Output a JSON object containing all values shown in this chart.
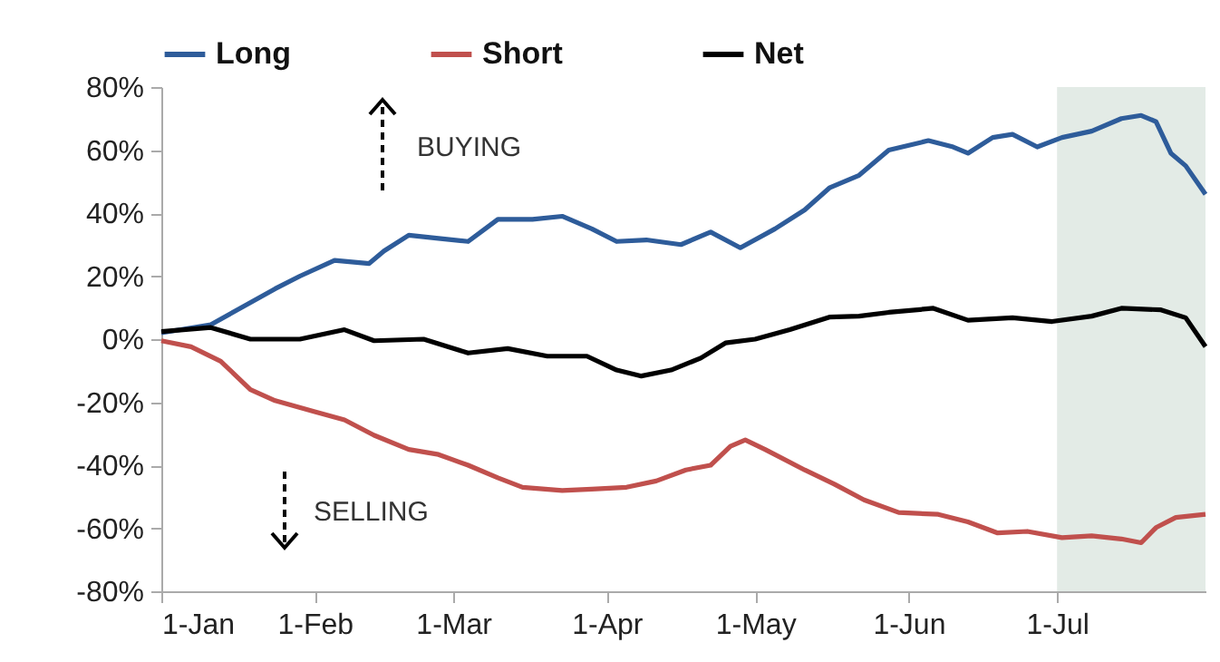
{
  "chart_data": {
    "type": "line",
    "legend": "top",
    "grid": false,
    "annotations": [
      "BUYING",
      "SELLING"
    ],
    "xlim": [
      "--01-01",
      "--07-31"
    ],
    "xticks": [
      {
        "value": "--01-01",
        "label": "1-Jan"
      },
      {
        "value": "--02-01",
        "label": "1-Feb"
      },
      {
        "value": "--03-01",
        "label": "1-Mar"
      },
      {
        "value": "--04-01",
        "label": "1-Apr"
      },
      {
        "value": "--05-01",
        "label": "1-May"
      },
      {
        "value": "--06-01",
        "label": "1-Jun"
      },
      {
        "value": "--07-01",
        "label": "1-Jul"
      }
    ],
    "ylim": [
      -80,
      80
    ],
    "yticks": [
      {
        "value": -80,
        "label": "-80%"
      },
      {
        "value": -60,
        "label": "-60%"
      },
      {
        "value": -40,
        "label": "-40%"
      },
      {
        "value": -20,
        "label": "-20%"
      },
      {
        "value": 0,
        "label": "0%"
      },
      {
        "value": 20,
        "label": "20%"
      },
      {
        "value": 40,
        "label": "40%"
      },
      {
        "value": 60,
        "label": "60%"
      },
      {
        "value": 80,
        "label": "80%"
      }
    ],
    "bands": [
      {
        "axis": "x",
        "from": "--07-01",
        "to": "--07-31",
        "color": "#e3ebe6"
      }
    ],
    "series": [
      {
        "name": "Long",
        "color": "#2e5c9a",
        "x": [
          "--01-01",
          "--01-11",
          "--01-16",
          "--01-24",
          "--01-29",
          "--02-05",
          "--02-12",
          "--02-15",
          "--02-20",
          "--02-26",
          "--03-04",
          "--03-10",
          "--03-17",
          "--03-23",
          "--03-29",
          "--04-03",
          "--04-09",
          "--04-16",
          "--04-22",
          "--04-28",
          "--05-05",
          "--05-11",
          "--05-16",
          "--05-22",
          "--05-28",
          "--06-05",
          "--06-10",
          "--06-13",
          "--06-18",
          "--06-22",
          "--06-27",
          "--07-02",
          "--07-08",
          "--07-14",
          "--07-18",
          "--07-21",
          "--07-24",
          "--07-27",
          "--07-31"
        ],
        "values": [
          2,
          4.6,
          9,
          16,
          20,
          25,
          24,
          28,
          33,
          32,
          31,
          38,
          38,
          39,
          35,
          31,
          31.5,
          30,
          34,
          29,
          35,
          41,
          48,
          52,
          60,
          63,
          61,
          59,
          64,
          65,
          61,
          64,
          66,
          70,
          71,
          69,
          59,
          55,
          46
        ]
      },
      {
        "name": "Short",
        "color": "#c0504d",
        "x": [
          "--01-01",
          "--01-07",
          "--01-13",
          "--01-19",
          "--01-24",
          "--02-01",
          "--02-07",
          "--02-13",
          "--02-20",
          "--02-26",
          "--03-04",
          "--03-10",
          "--03-15",
          "--03-23",
          "--03-29",
          "--04-05",
          "--04-11",
          "--04-17",
          "--04-22",
          "--04-26",
          "--04-29",
          "--05-03",
          "--05-11",
          "--05-17",
          "--05-23",
          "--05-30",
          "--06-07",
          "--06-13",
          "--06-19",
          "--06-25",
          "--07-02",
          "--07-08",
          "--07-14",
          "--07-18",
          "--07-21",
          "--07-25",
          "--07-31"
        ],
        "values": [
          -0.5,
          -2.4,
          -7,
          -16,
          -19.5,
          -23,
          -25.6,
          -30.5,
          -35,
          -36.6,
          -40,
          -44,
          -47,
          -48,
          -47.6,
          -47,
          -45,
          -41.5,
          -40,
          -34,
          -32,
          -35,
          -41.5,
          -46,
          -51,
          -55,
          -55.6,
          -58,
          -61.5,
          -61,
          -63,
          -62.4,
          -63.4,
          -64.6,
          -59.8,
          -56.6,
          -55.6
        ]
      },
      {
        "name": "Net",
        "color": "#000000",
        "x": [
          "--01-01",
          "--01-11",
          "--01-19",
          "--01-29",
          "--02-07",
          "--02-13",
          "--02-23",
          "--03-04",
          "--03-12",
          "--03-20",
          "--03-28",
          "--04-03",
          "--04-08",
          "--04-14",
          "--04-20",
          "--04-25",
          "--05-01",
          "--05-08",
          "--05-16",
          "--05-22",
          "--05-28",
          "--06-06",
          "--06-13",
          "--06-22",
          "--06-30",
          "--07-08",
          "--07-14",
          "--07-22",
          "--07-27",
          "--07-31"
        ],
        "values": [
          2.4,
          3.7,
          0,
          0,
          3,
          -0.5,
          0,
          -4.4,
          -3,
          -5.4,
          -5.4,
          -9.8,
          -11.7,
          -9.8,
          -6,
          -1.2,
          0,
          3,
          7,
          7.3,
          8.5,
          9.8,
          6,
          6.8,
          5.6,
          7.3,
          9.8,
          9.3,
          6.8,
          -2.4
        ]
      }
    ]
  }
}
